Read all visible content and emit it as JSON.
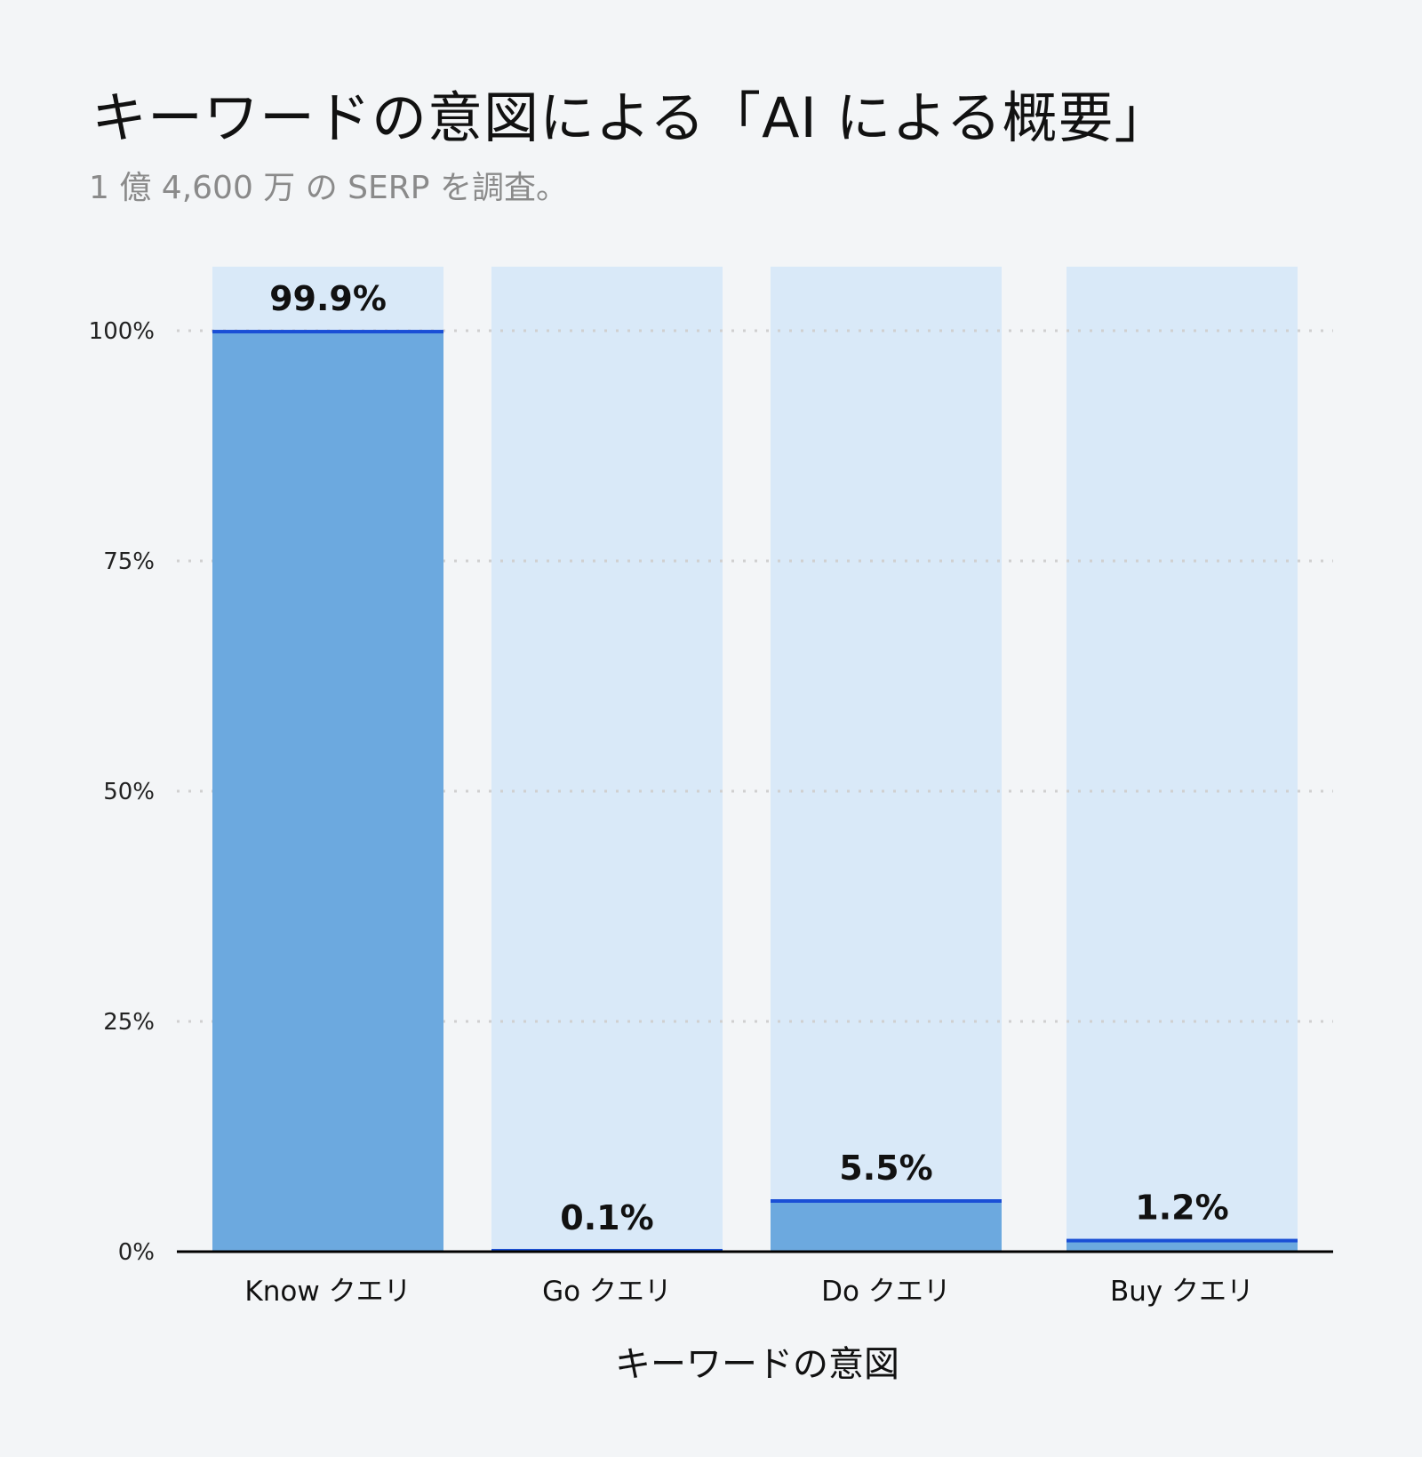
{
  "chart_data": {
    "type": "bar",
    "title": "キーワードの意図による「AI による概要」",
    "subtitle": "1 億 4,600 万 の SERP を調査。",
    "xlabel": "キーワードの意図",
    "ylabel": "",
    "categories": [
      "Know クエリ",
      "Go クエリ",
      "Do クエリ",
      "Buy クエリ"
    ],
    "values": [
      99.9,
      0.1,
      5.5,
      1.2
    ],
    "data_labels": [
      "99.9%",
      "0.1%",
      "5.5%",
      "1.2%"
    ],
    "ylim": [
      0,
      100
    ],
    "yticks": [
      0,
      25,
      50,
      75,
      100
    ],
    "ytick_labels": [
      "0%",
      "25%",
      "50%",
      "75%",
      "100%"
    ],
    "grid": true,
    "colors": {
      "bar": "#6ca9df",
      "background_bar": "#d9e9f8",
      "bar_top": "#1a4fd6",
      "grid": "#d0d0d0"
    }
  }
}
